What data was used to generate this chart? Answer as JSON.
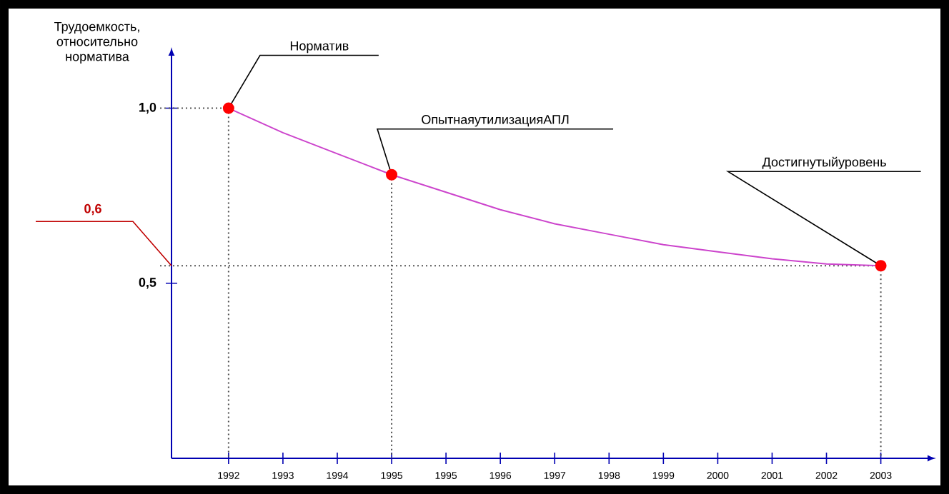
{
  "chart_data": {
    "type": "line",
    "ylabel": "Трудоемкость, относительно норматива",
    "categories": [
      "1992",
      "1993",
      "1994",
      "1995",
      "1995",
      "1996",
      "1997",
      "1998",
      "1999",
      "2000",
      "2001",
      "2002",
      "2003"
    ],
    "series": [
      {
        "color": "#cc44cc",
        "marker": "none",
        "values": [
          1.0,
          0.93,
          0.87,
          0.81,
          0.76,
          0.71,
          0.67,
          0.64,
          0.61,
          0.59,
          0.57,
          0.555,
          0.55
        ]
      },
      {
        "type": "scatter",
        "color": "#ff0000",
        "marker": "circle",
        "values": [
          1.0,
          null,
          null,
          0.81,
          null,
          null,
          null,
          null,
          null,
          null,
          null,
          null,
          0.55
        ]
      }
    ],
    "ylim": [
      0,
      1.15
    ],
    "yticks": [
      {
        "value": 0.5,
        "label": "0,5"
      },
      {
        "value": 1.0,
        "label": "1,0"
      }
    ],
    "ref_lines": [
      {
        "axis": "y",
        "value": 0.55,
        "label": "0,6",
        "color": "#555555"
      },
      {
        "axis": "y",
        "value": 1.0,
        "color": "#555555"
      }
    ],
    "annotations": [
      {
        "text": "Норматив",
        "x": "1992",
        "y": 1.0
      },
      {
        "text": "ОпытнаяутилизацияАПЛ",
        "x": "1995",
        "y": 0.81
      },
      {
        "text": "Достигнутыйуровень",
        "x": "2003",
        "y": 0.55
      }
    ]
  }
}
